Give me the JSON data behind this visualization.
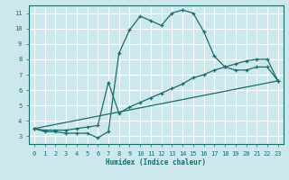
{
  "xlabel": "Humidex (Indice chaleur)",
  "bg_color": "#cce8ec",
  "grid_color": "#ffffff",
  "line_color": "#1a6b6b",
  "xlim": [
    -0.5,
    23.5
  ],
  "ylim": [
    2.5,
    11.5
  ],
  "xticks": [
    0,
    1,
    2,
    3,
    4,
    5,
    6,
    7,
    8,
    9,
    10,
    11,
    12,
    13,
    14,
    15,
    16,
    17,
    18,
    19,
    20,
    21,
    22,
    23
  ],
  "yticks": [
    3,
    4,
    5,
    6,
    7,
    8,
    9,
    10,
    11
  ],
  "line1_x": [
    0,
    1,
    2,
    3,
    4,
    5,
    6,
    7,
    8,
    9,
    10,
    11,
    12,
    13,
    14,
    15,
    16,
    17,
    18,
    19,
    20,
    21,
    22,
    23
  ],
  "line1_y": [
    3.5,
    3.3,
    3.3,
    3.2,
    3.2,
    3.2,
    2.9,
    3.3,
    8.4,
    9.9,
    10.8,
    10.5,
    10.2,
    11.0,
    11.2,
    11.0,
    9.8,
    8.2,
    7.5,
    7.3,
    7.3,
    7.5,
    7.5,
    6.6
  ],
  "line2_x": [
    0,
    1,
    2,
    3,
    4,
    5,
    6,
    7,
    8,
    9,
    10,
    11,
    12,
    13,
    14,
    15,
    16,
    17,
    18,
    19,
    20,
    21,
    22,
    23
  ],
  "line2_y": [
    3.5,
    3.4,
    3.4,
    3.4,
    3.5,
    3.6,
    3.7,
    6.5,
    4.5,
    4.9,
    5.2,
    5.5,
    5.8,
    6.1,
    6.4,
    6.8,
    7.0,
    7.3,
    7.5,
    7.7,
    7.9,
    8.0,
    8.0,
    6.6
  ],
  "line3_x": [
    0,
    23
  ],
  "line3_y": [
    3.5,
    6.6
  ]
}
